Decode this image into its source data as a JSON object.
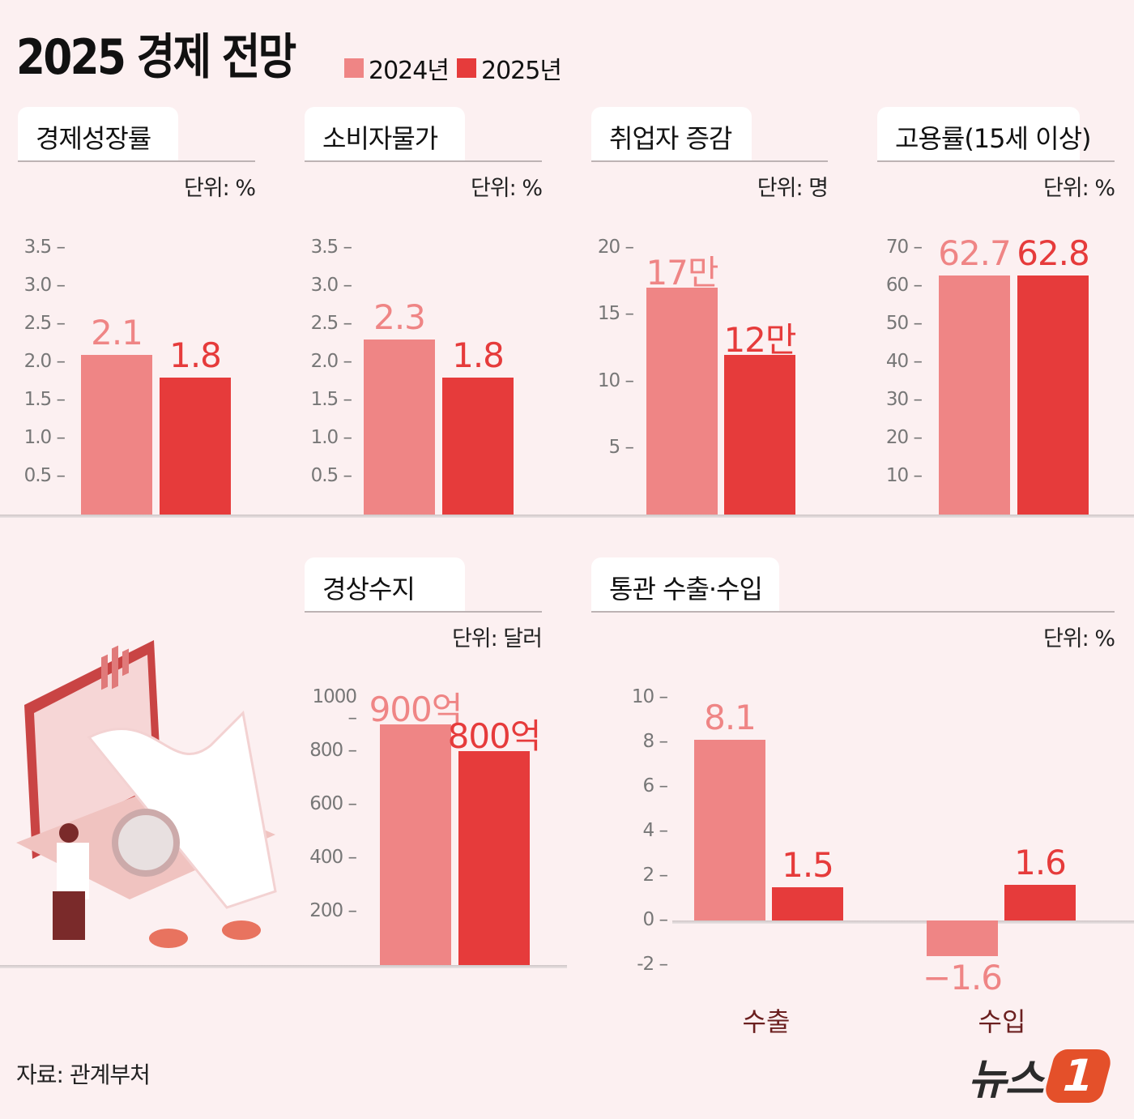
{
  "title": "2025 경제 전망",
  "legend": [
    {
      "label": "2024년",
      "color": "#ef8585"
    },
    {
      "label": "2025년",
      "color": "#e63b3b"
    }
  ],
  "source": "자료: 관계부처",
  "logo": "뉴스1",
  "chart_data": [
    {
      "type": "bar",
      "title": "경제성장률",
      "unit": "단위: %",
      "yticks": [
        "3.5",
        "3.0",
        "2.5",
        "2.0",
        "1.5",
        "1.0",
        "0.5"
      ],
      "ylim": [
        0,
        3.5
      ],
      "series": [
        {
          "name": "2024년",
          "values": [
            2.1
          ],
          "labels": [
            "2.1"
          ]
        },
        {
          "name": "2025년",
          "values": [
            1.8
          ],
          "labels": [
            "1.8"
          ]
        }
      ]
    },
    {
      "type": "bar",
      "title": "소비자물가",
      "unit": "단위: %",
      "yticks": [
        "3.5",
        "3.0",
        "2.5",
        "2.0",
        "1.5",
        "1.0",
        "0.5"
      ],
      "ylim": [
        0,
        3.5
      ],
      "series": [
        {
          "name": "2024년",
          "values": [
            2.3
          ],
          "labels": [
            "2.3"
          ]
        },
        {
          "name": "2025년",
          "values": [
            1.8
          ],
          "labels": [
            "1.8"
          ]
        }
      ]
    },
    {
      "type": "bar",
      "title": "취업자 증감",
      "unit": "단위: 명",
      "yticks": [
        "20",
        "15",
        "10",
        "5"
      ],
      "ylim": [
        0,
        20
      ],
      "series": [
        {
          "name": "2024년",
          "values": [
            17
          ],
          "labels": [
            "17만"
          ]
        },
        {
          "name": "2025년",
          "values": [
            12
          ],
          "labels": [
            "12만"
          ]
        }
      ]
    },
    {
      "type": "bar",
      "title": "고용률(15세 이상)",
      "unit": "단위: %",
      "yticks": [
        "70",
        "60",
        "50",
        "40",
        "30",
        "20",
        "10"
      ],
      "ylim": [
        0,
        70
      ],
      "series": [
        {
          "name": "2024년",
          "values": [
            62.7
          ],
          "labels": [
            "62.7"
          ]
        },
        {
          "name": "2025년",
          "values": [
            62.8
          ],
          "labels": [
            "62.8"
          ]
        }
      ]
    },
    {
      "type": "bar",
      "title": "경상수지",
      "unit": "단위: 달러",
      "yticks": [
        "1000",
        "800",
        "600",
        "400",
        "200"
      ],
      "ylim": [
        0,
        1000
      ],
      "series": [
        {
          "name": "2024년",
          "values": [
            900
          ],
          "labels": [
            "900억"
          ]
        },
        {
          "name": "2025년",
          "values": [
            800
          ],
          "labels": [
            "800억"
          ]
        }
      ]
    },
    {
      "type": "bar",
      "title": "통관 수출·수입",
      "unit": "단위: %",
      "yticks": [
        "10",
        "8",
        "6",
        "4",
        "2",
        "0",
        "-2"
      ],
      "ylim": [
        -2,
        10
      ],
      "categories": [
        "수출",
        "수입"
      ],
      "series": [
        {
          "name": "2024년",
          "values": [
            8.1,
            -1.6
          ],
          "labels": [
            "8.1",
            "−1.6"
          ]
        },
        {
          "name": "2025년",
          "values": [
            1.5,
            1.6
          ],
          "labels": [
            "1.5",
            "1.6"
          ]
        }
      ]
    }
  ]
}
